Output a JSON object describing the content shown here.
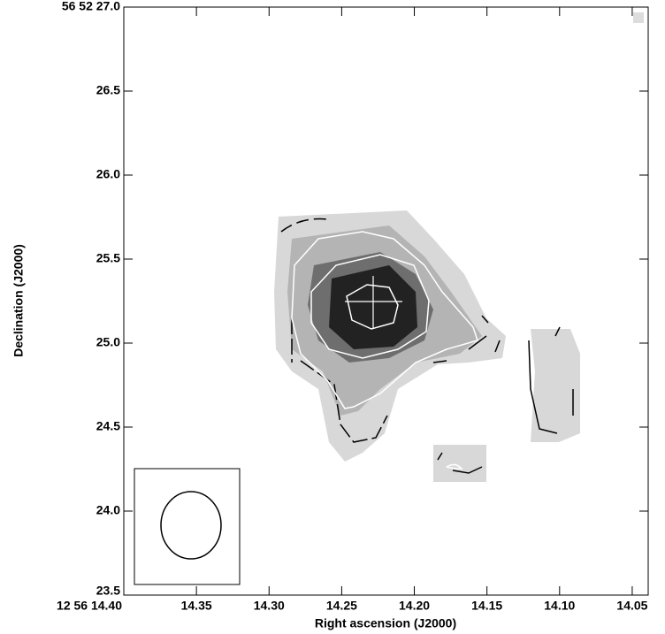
{
  "chart_data": {
    "type": "image",
    "xlabel": "Right ascension (J2000)",
    "ylabel": "Declination (J2000)",
    "xlim": [
      14.4,
      14.039
    ],
    "ylim": [
      23.5,
      27.0
    ],
    "xticks": [
      {
        "value": 14.4,
        "label": "12 56 14.40"
      },
      14.35,
      {
        "value": 14.3,
        "label": "14.30"
      },
      14.25,
      {
        "value": 14.2,
        "label": "14.20"
      },
      14.15,
      {
        "value": 14.1,
        "label": "14.10"
      },
      14.05
    ],
    "yticks": [
      {
        "value": 23.5,
        "label": "23.5"
      },
      {
        "value": 24.0,
        "label": "24.0"
      },
      24.5,
      {
        "value": 25.0,
        "label": "25.0"
      },
      25.5,
      {
        "value": 26.0,
        "label": "26.0"
      },
      26.5,
      {
        "value": 27.0,
        "label": "56 52 27.0"
      }
    ]
  }
}
